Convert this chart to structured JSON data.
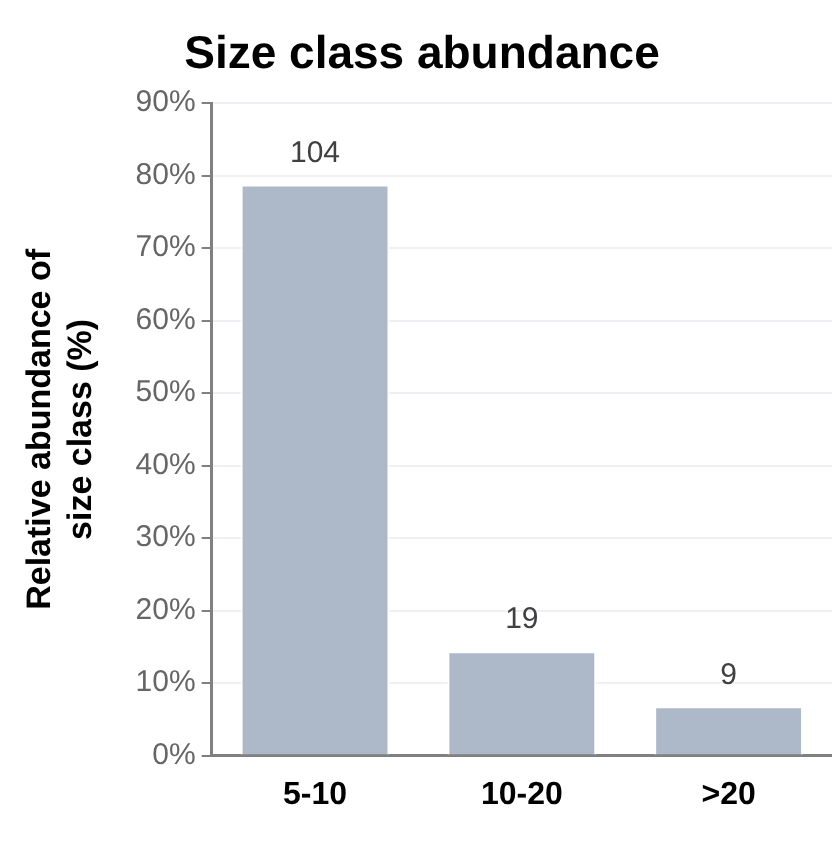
{
  "chart_data": {
    "type": "bar",
    "title": "Size class abundance",
    "ylabel": "Relative abundance of\nsize class (%)",
    "categories": [
      "5-10",
      "10-20",
      ">20"
    ],
    "values": [
      78.8,
      14.4,
      6.8
    ],
    "annotations": [
      {
        "text": "104",
        "x": "5-10",
        "y": 78.8
      },
      {
        "text": "19",
        "x": "10-20",
        "y": 14.4
      },
      {
        "text": "9",
        "x": ">20",
        "y": 6.8
      }
    ],
    "color": "#adb8c9",
    "ylim": [
      0,
      90
    ],
    "yticks": [
      {
        "value": 0,
        "label": "0%"
      },
      {
        "value": 10,
        "label": "10%"
      },
      {
        "value": 20,
        "label": "20%"
      },
      {
        "value": 30,
        "label": "30%"
      },
      {
        "value": 40,
        "label": "40%"
      },
      {
        "value": 50,
        "label": "50%"
      },
      {
        "value": 60,
        "label": "60%"
      },
      {
        "value": 70,
        "label": "70%"
      },
      {
        "value": 80,
        "label": "80%"
      },
      {
        "value": 90,
        "label": "90%"
      }
    ],
    "grid": "y"
  }
}
